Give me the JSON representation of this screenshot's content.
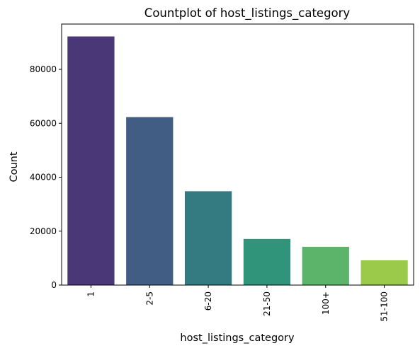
{
  "chart_data": {
    "type": "bar",
    "title": "Countplot of host_listings_category",
    "xlabel": "host_listings_category",
    "ylabel": "Count",
    "categories": [
      "1",
      "2-5",
      "6-20",
      "21-50",
      "100+",
      "51-100"
    ],
    "values": [
      92200,
      62300,
      34800,
      17100,
      14200,
      9200
    ],
    "colors": [
      "#4a3777",
      "#425d84",
      "#337b80",
      "#2f9479",
      "#5bb46a",
      "#9bc94a"
    ],
    "yticks": [
      0,
      20000,
      40000,
      60000,
      80000
    ],
    "ylim": [
      0,
      96800
    ],
    "grid": false,
    "legend": false
  }
}
